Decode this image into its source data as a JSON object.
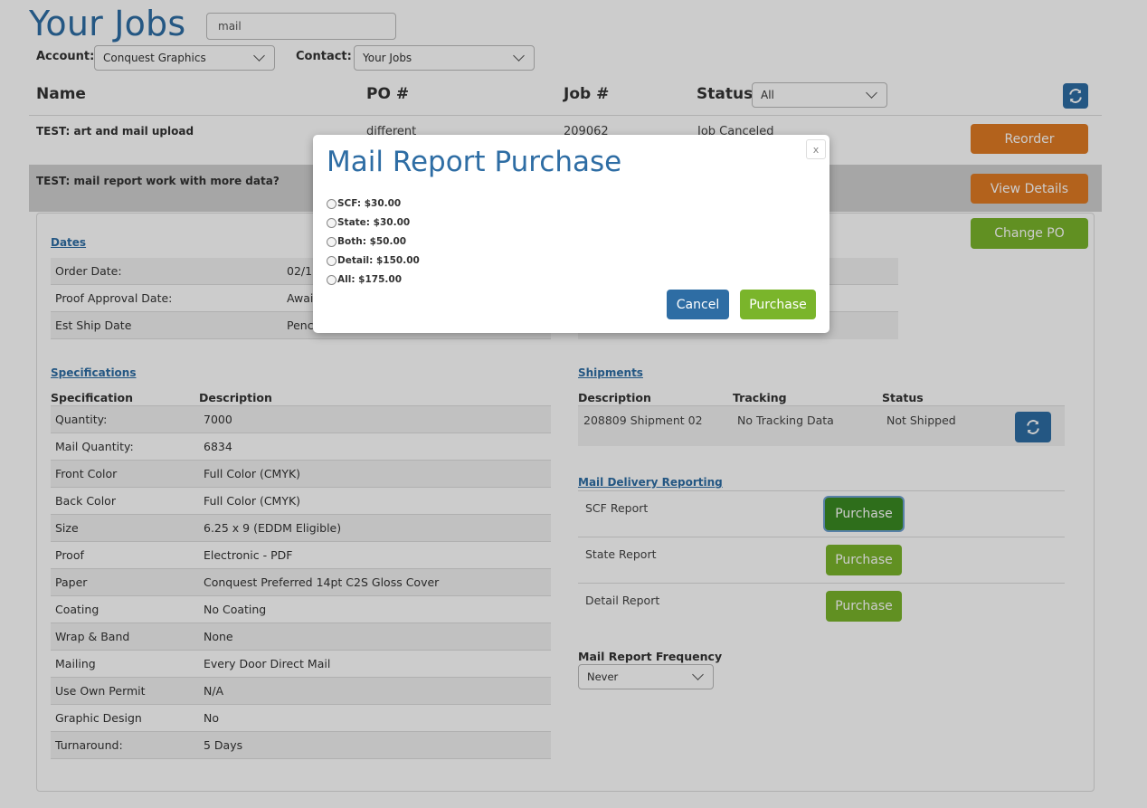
{
  "header": {
    "title": "Your Jobs",
    "search_value": "mail",
    "account_label": "Account:",
    "account_value": "Conquest Graphics",
    "contact_label": "Contact:",
    "contact_value": "Your Jobs"
  },
  "columns": {
    "name": "Name",
    "po": "PO #",
    "job": "Job #",
    "status": "Status",
    "status_filter": "All"
  },
  "jobs": [
    {
      "name": "TEST: art and mail upload",
      "po": "different",
      "job": "209062",
      "status": "Job Canceled",
      "action": "Reorder"
    },
    {
      "name": "TEST: mail report work with more data?",
      "action": "View Details",
      "action2": "Change PO"
    }
  ],
  "dates": {
    "title": "Dates",
    "rows": [
      {
        "label": "Order Date:",
        "value": "02/1"
      },
      {
        "label": "Proof Approval Date:",
        "value": "Awai"
      },
      {
        "label": "Est Ship Date",
        "value": "Penc"
      }
    ]
  },
  "specifications": {
    "title": "Specifications",
    "col_spec": "Specification",
    "col_desc": "Description",
    "rows": [
      {
        "label": "Quantity:",
        "value": "7000"
      },
      {
        "label": "Mail Quantity:",
        "value": "6834"
      },
      {
        "label": "Front Color",
        "value": "Full Color (CMYK)"
      },
      {
        "label": "Back Color",
        "value": "Full Color (CMYK)"
      },
      {
        "label": "Size",
        "value": "6.25 x 9 (EDDM Eligible)"
      },
      {
        "label": "Proof",
        "value": "Electronic - PDF"
      },
      {
        "label": "Paper",
        "value": "Conquest Preferred 14pt C2S Gloss Cover"
      },
      {
        "label": "Coating",
        "value": "No Coating"
      },
      {
        "label": "Wrap & Band",
        "value": "None"
      },
      {
        "label": "Mailing",
        "value": "Every Door Direct Mail"
      },
      {
        "label": "Use Own Permit",
        "value": "N/A"
      },
      {
        "label": "Graphic Design",
        "value": "No"
      },
      {
        "label": "Turnaround:",
        "value": "5 Days"
      }
    ]
  },
  "shipments": {
    "title": "Shipments",
    "col_desc": "Description",
    "col_tracking": "Tracking",
    "col_status": "Status",
    "rows": [
      {
        "desc": "208809 Shipment 02",
        "tracking": "No Tracking Data",
        "status": "Not Shipped"
      }
    ]
  },
  "mail_reporting": {
    "title": "Mail Delivery Reporting",
    "rows": [
      {
        "label": "SCF Report",
        "button": "Purchase"
      },
      {
        "label": "State Report",
        "button": "Purchase"
      },
      {
        "label": "Detail Report",
        "button": "Purchase"
      }
    ],
    "frequency_label": "Mail Report Frequency",
    "frequency_value": "Never"
  },
  "modal": {
    "title": "Mail Report Purchase",
    "close": "x",
    "options": [
      {
        "label": "SCF: $30.00"
      },
      {
        "label": "State: $30.00"
      },
      {
        "label": "Both: $50.00"
      },
      {
        "label": "Detail: $150.00"
      },
      {
        "label": "All: $175.00"
      }
    ],
    "cancel": "Cancel",
    "purchase": "Purchase"
  },
  "colors": {
    "primary_blue": "#2e6da4",
    "orange": "#e07b24",
    "green": "#7ab52b",
    "dark_green": "#3a8a22"
  }
}
